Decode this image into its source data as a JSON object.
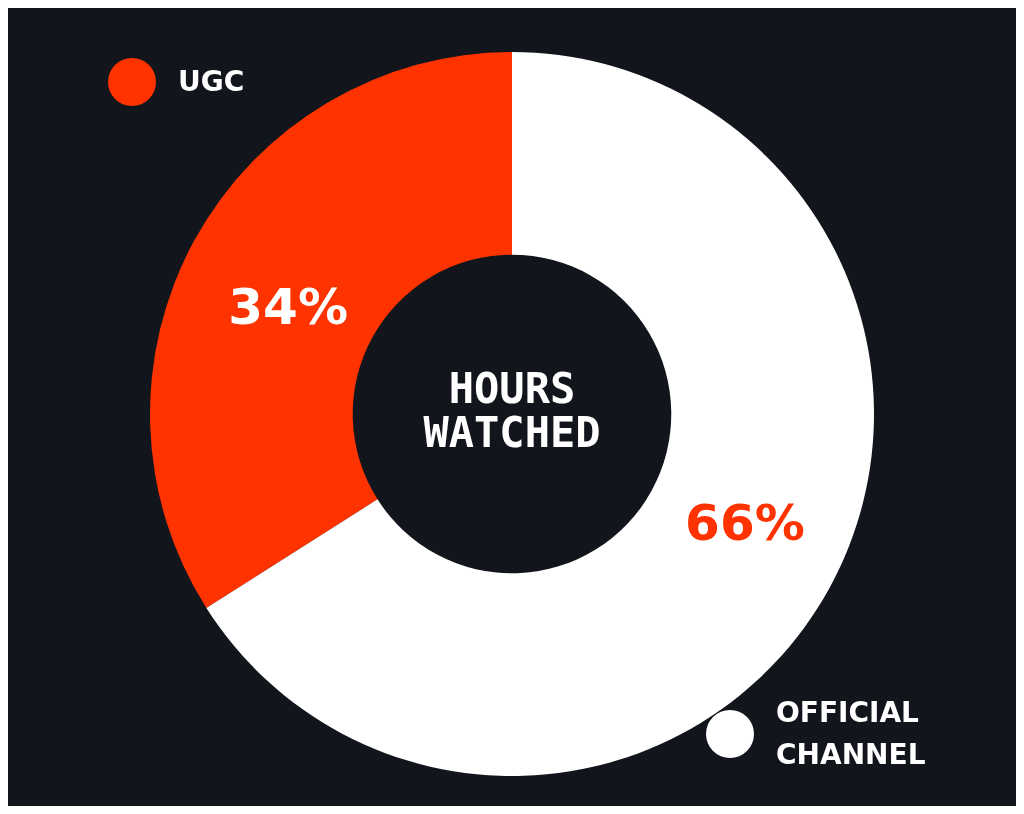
{
  "chart_data": {
    "type": "donut",
    "title": "HOURS WATCHED",
    "categories": [
      "UGC",
      "OFFICIAL CHANNEL"
    ],
    "values": [
      34,
      66
    ],
    "colors": [
      "#ff3300",
      "#ffffff"
    ],
    "value_labels": [
      "34%",
      "66%"
    ],
    "legend": "top left"
  }
}
